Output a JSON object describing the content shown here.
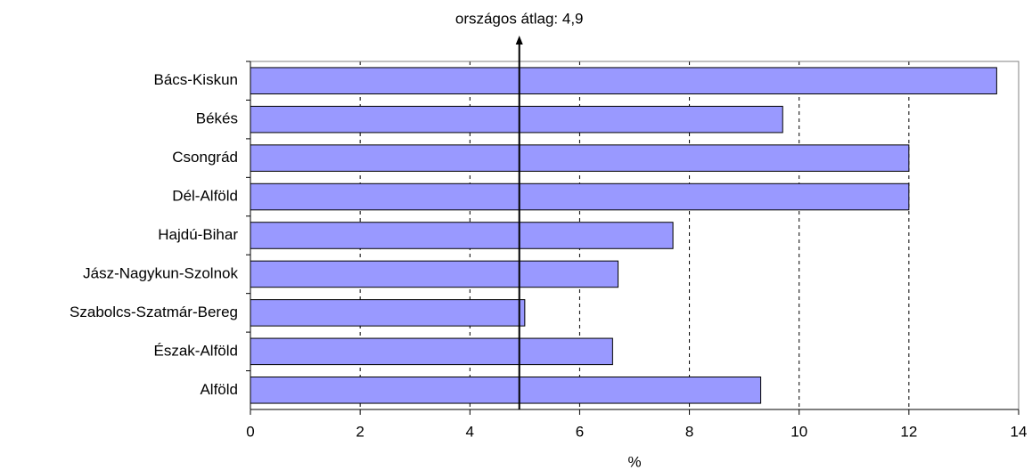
{
  "chart_data": {
    "type": "barh",
    "categories": [
      "Bács-Kiskun",
      "Békés",
      "Csongrád",
      "Dél-Alföld",
      "Hajdú-Bihar",
      "Jász-Nagykun-Szolnok",
      "Szabolcs-Szatmár-Bereg",
      "Észak-Alföld",
      "Alföld"
    ],
    "values": [
      13.6,
      9.7,
      12.0,
      12.0,
      7.7,
      6.7,
      5.0,
      6.6,
      9.3
    ],
    "color": "#9999ff",
    "xlim": [
      0,
      14
    ],
    "xticks": [
      0,
      2,
      4,
      6,
      8,
      10,
      12,
      14
    ],
    "xlabel": "%",
    "grid": true,
    "reference_line": {
      "value": 4.9,
      "label": "országos átlag: 4,9"
    }
  }
}
